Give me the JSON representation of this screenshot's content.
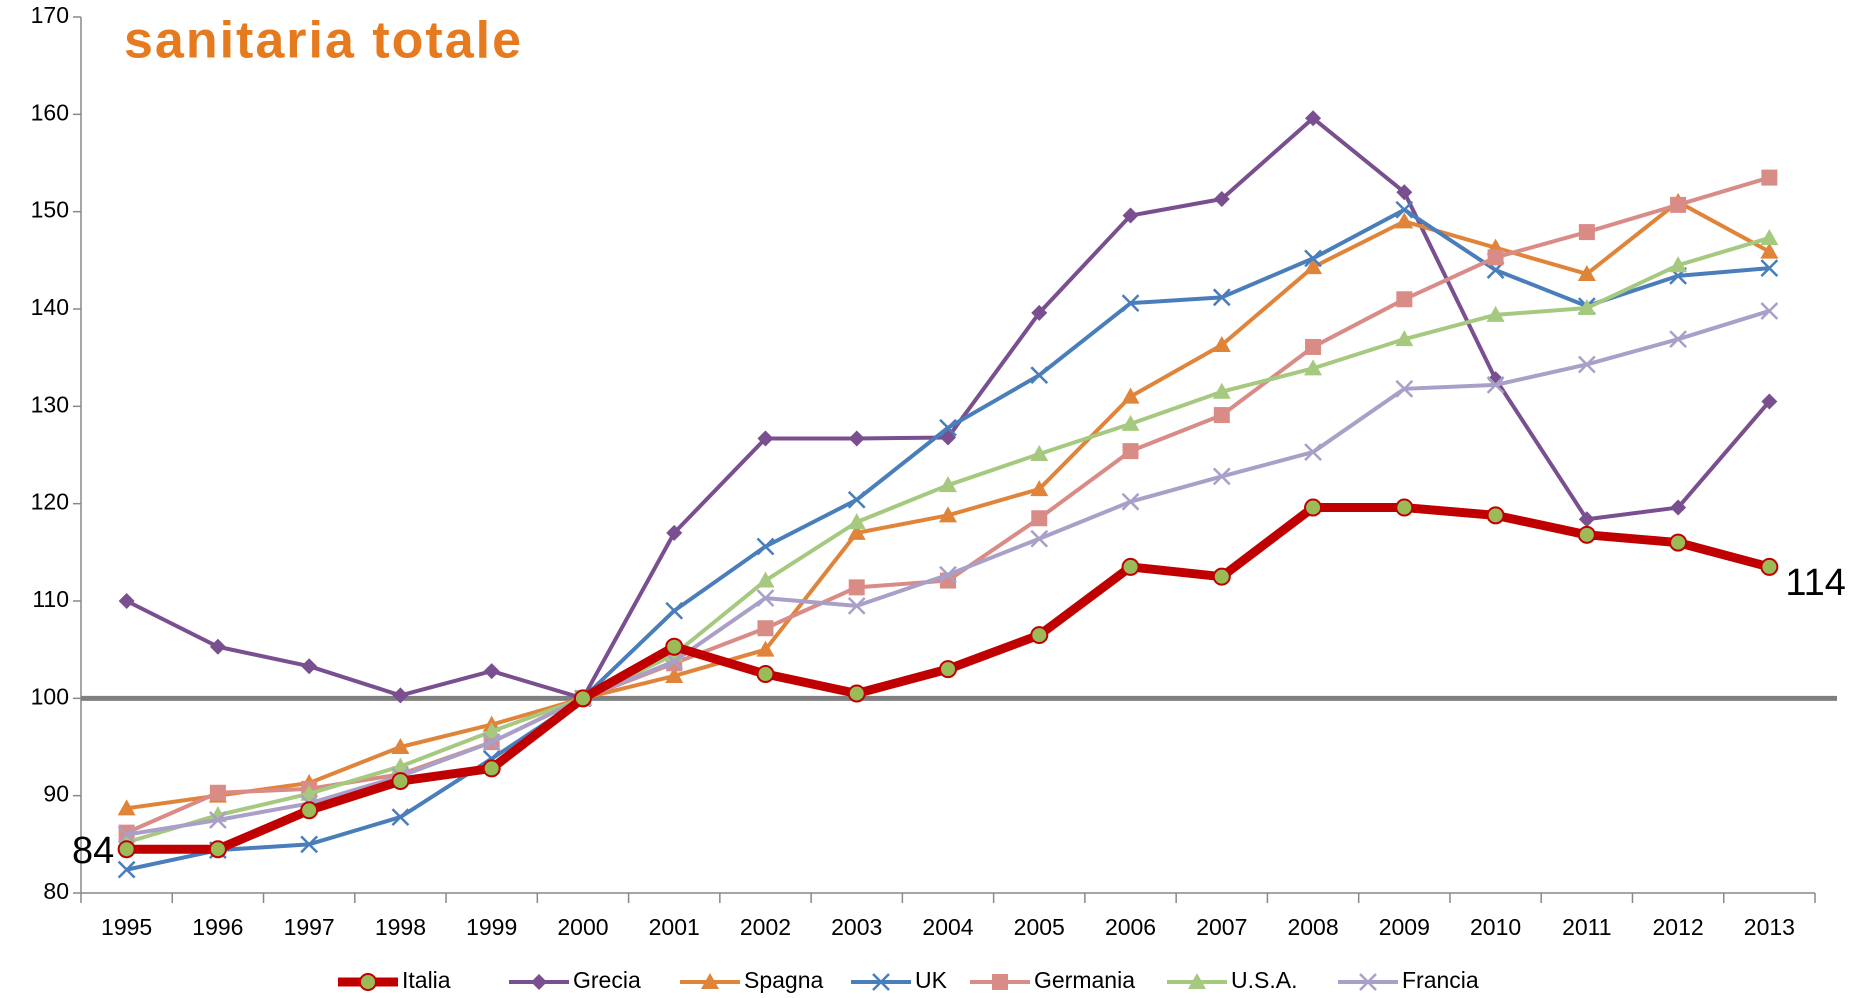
{
  "chart_data": {
    "type": "line",
    "title": "sanitaria totale",
    "categories": [
      "1995",
      "1996",
      "1997",
      "1998",
      "1999",
      "2000",
      "2001",
      "2002",
      "2003",
      "2004",
      "2005",
      "2006",
      "2007",
      "2008",
      "2009",
      "2010",
      "2011",
      "2012",
      "2013"
    ],
    "ylim": [
      80,
      170
    ],
    "yticks": [
      80,
      90,
      100,
      110,
      120,
      130,
      140,
      150,
      160,
      170
    ],
    "reference_line": 100,
    "annotations": [
      "84",
      "114"
    ],
    "legend": "bottom",
    "series": [
      {
        "name": "Italia",
        "color": "#c00000",
        "marker": "circle",
        "values": [
          84.5,
          84.5,
          88.5,
          91.5,
          92.8,
          100,
          105.3,
          102.5,
          100.5,
          103,
          106.5,
          113.5,
          112.5,
          119.6,
          119.6,
          118.8,
          116.8,
          116,
          113.5
        ]
      },
      {
        "name": "Grecia",
        "color": "#7a4f8f",
        "marker": "diamond",
        "values": [
          110,
          105.3,
          103.3,
          100.3,
          102.8,
          100,
          117,
          126.7,
          126.7,
          126.8,
          139.6,
          149.6,
          151.3,
          159.6,
          152,
          132.8,
          118.4,
          119.6,
          130.5
        ]
      },
      {
        "name": "Spagna",
        "color": "#e0843a",
        "marker": "triangle",
        "values": [
          88.7,
          90,
          91.3,
          95,
          97.3,
          100,
          102.3,
          105,
          117,
          118.8,
          121.5,
          131,
          136.3,
          144.3,
          149,
          146.3,
          143.6,
          151,
          145.9
        ]
      },
      {
        "name": "UK",
        "color": "#4a7ebb",
        "marker": "x",
        "values": [
          82.4,
          84.4,
          85,
          87.8,
          93.8,
          100,
          109,
          115.6,
          120.4,
          127.8,
          133.2,
          140.6,
          141.2,
          145.2,
          150.2,
          144,
          140.3,
          143.4,
          144.2
        ]
      },
      {
        "name": "Germania",
        "color": "#d98b86",
        "marker": "square",
        "values": [
          86.2,
          90.3,
          90.7,
          92.2,
          95.5,
          100,
          103.6,
          107.2,
          111.4,
          112.1,
          118.5,
          125.4,
          129.1,
          136.1,
          141,
          145.3,
          147.9,
          150.7,
          153.5
        ]
      },
      {
        "name": "U.S.A.",
        "color": "#a5c97f",
        "marker": "triangle",
        "values": [
          85.2,
          88,
          90.2,
          93,
          96.6,
          100,
          104.5,
          112.1,
          118.1,
          121.9,
          125.1,
          128.2,
          131.5,
          133.9,
          136.9,
          139.4,
          140.1,
          144.5,
          147.3
        ]
      },
      {
        "name": "Francia",
        "color": "#a99fc7",
        "marker": "x",
        "values": [
          86,
          87.5,
          89.2,
          92,
          95.5,
          100,
          103.8,
          110.3,
          109.5,
          112.7,
          116.4,
          120.2,
          122.8,
          125.3,
          131.8,
          132.2,
          134.3,
          136.9,
          139.8
        ]
      }
    ]
  }
}
